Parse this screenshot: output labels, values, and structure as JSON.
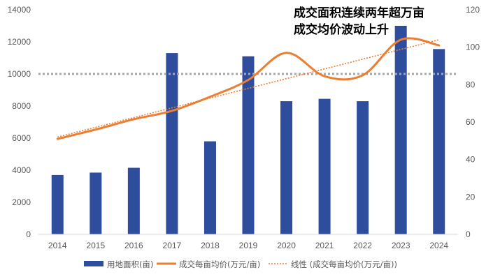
{
  "chart_data": {
    "type": "bar",
    "title_lines": [
      "成交面积连续两年超万亩",
      "成交均价波动上升"
    ],
    "categories": [
      "2014",
      "2015",
      "2016",
      "2017",
      "2018",
      "2019",
      "2020",
      "2021",
      "2022",
      "2023",
      "2024"
    ],
    "series": [
      {
        "name": "用地面积(亩)",
        "kind": "bar",
        "axis": "left",
        "color": "#2E4D9C",
        "values": [
          3700,
          3850,
          4150,
          11300,
          5800,
          11100,
          8300,
          8450,
          8300,
          13000,
          11550
        ]
      },
      {
        "name": "成交每亩均价(万元/亩)",
        "kind": "smooth-line",
        "axis": "right",
        "color": "#ED7D31",
        "values": [
          51,
          56,
          61.5,
          66,
          73.5,
          82.5,
          97,
          84.5,
          85,
          104,
          101
        ]
      },
      {
        "name": "线性 (成交每亩均价(万元/亩))",
        "kind": "dotted-trendline",
        "axis": "right",
        "color": "#ED7D31",
        "values": [
          52,
          57.2,
          62.4,
          67.6,
          72.8,
          78,
          83.2,
          88.4,
          93.6,
          98.8,
          104
        ]
      }
    ],
    "left_axis": {
      "min": 0,
      "max": 14000,
      "ticks": [
        "0",
        "2000",
        "4000",
        "6000",
        "8000",
        "10000",
        "12000",
        "14000"
      ]
    },
    "right_axis": {
      "min": 0,
      "max": 120,
      "ticks": [
        "0",
        "20",
        "40",
        "60",
        "80",
        "100",
        "120"
      ]
    },
    "reference_line": {
      "axis": "left",
      "value": 10000,
      "color": "#A6A6A6",
      "style": "dotted"
    },
    "grid": false,
    "legend_position": "bottom"
  }
}
